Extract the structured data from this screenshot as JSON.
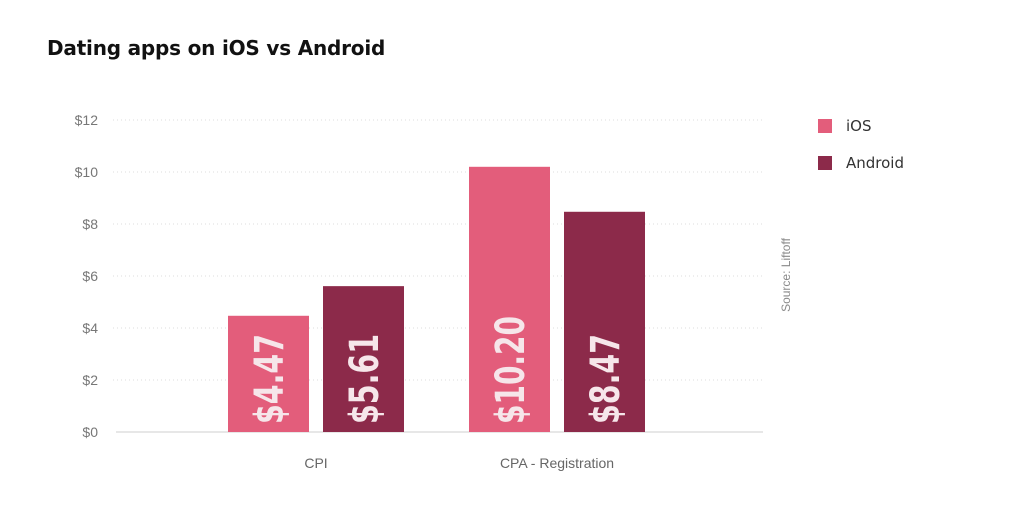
{
  "chart_data": {
    "type": "bar",
    "title": "Dating apps on iOS vs Android",
    "categories": [
      "CPI",
      "CPA - Registration"
    ],
    "series": [
      {
        "name": "iOS",
        "color": "#e35d7b",
        "values": [
          4.47,
          10.2
        ],
        "labels": [
          "$4.47",
          "$10.20"
        ]
      },
      {
        "name": "Android",
        "color": "#8c2a4a",
        "values": [
          5.61,
          8.47
        ],
        "labels": [
          "$5.61",
          "$8.47"
        ]
      }
    ],
    "yticks": [
      {
        "value": 0,
        "label": "$0"
      },
      {
        "value": 2,
        "label": "$2"
      },
      {
        "value": 4,
        "label": "$4"
      },
      {
        "value": 6,
        "label": "$6"
      },
      {
        "value": 8,
        "label": "$8"
      },
      {
        "value": 10,
        "label": "$10"
      },
      {
        "value": 12,
        "label": "$12"
      }
    ],
    "ylim": [
      0,
      12
    ],
    "xlabel": "",
    "ylabel": "",
    "grid": "horizontal dotted",
    "legend_position": "right",
    "source": "Source: Liftoff"
  }
}
